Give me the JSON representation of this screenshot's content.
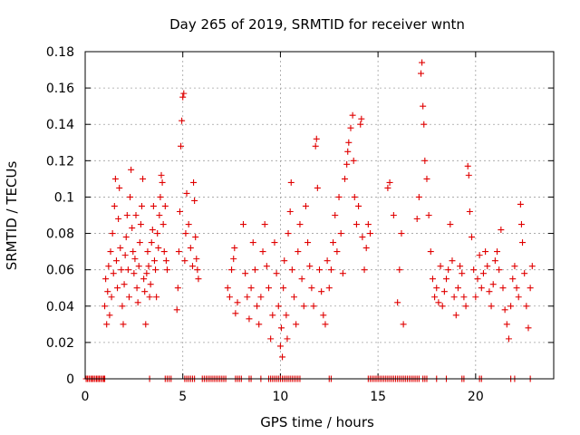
{
  "chart_data": {
    "type": "scatter",
    "title": "Day 265 of 2019, SRMTID for receiver wntn",
    "xlabel": "GPS time / hours",
    "ylabel": "SRMTID / TECUs",
    "xlim": [
      0,
      24
    ],
    "ylim": [
      0,
      0.18
    ],
    "xticks": [
      "0",
      "5",
      "10",
      "15",
      "20"
    ],
    "xtick_values": [
      0,
      5,
      10,
      15,
      20
    ],
    "yticks": [
      "0",
      "0.02",
      "0.04",
      "0.06",
      "0.08",
      "0.1",
      "0.12",
      "0.14",
      "0.16",
      "0.18"
    ],
    "ytick_values": [
      0,
      0.02,
      0.04,
      0.06,
      0.08,
      0.1,
      0.12,
      0.14,
      0.16,
      0.18
    ],
    "grid": true,
    "marker": "+",
    "series": [
      {
        "name": "SRMTID",
        "color": "#e00000",
        "points": [
          [
            1.0,
            0.04
          ],
          [
            1.05,
            0.055
          ],
          [
            1.1,
            0.03
          ],
          [
            1.15,
            0.048
          ],
          [
            1.2,
            0.062
          ],
          [
            1.25,
            0.035
          ],
          [
            1.3,
            0.07
          ],
          [
            1.35,
            0.045
          ],
          [
            1.4,
            0.08
          ],
          [
            1.45,
            0.058
          ],
          [
            1.5,
            0.095
          ],
          [
            1.55,
            0.11
          ],
          [
            1.6,
            0.065
          ],
          [
            1.65,
            0.05
          ],
          [
            1.7,
            0.088
          ],
          [
            1.75,
            0.105
          ],
          [
            1.8,
            0.072
          ],
          [
            1.85,
            0.06
          ],
          [
            1.9,
            0.04
          ],
          [
            1.95,
            0.03
          ],
          [
            2.0,
            0.052
          ],
          [
            2.05,
            0.068
          ],
          [
            2.1,
            0.078
          ],
          [
            2.15,
            0.09
          ],
          [
            2.2,
            0.06
          ],
          [
            2.25,
            0.045
          ],
          [
            2.3,
            0.1
          ],
          [
            2.35,
            0.115
          ],
          [
            2.4,
            0.083
          ],
          [
            2.45,
            0.07
          ],
          [
            2.5,
            0.058
          ],
          [
            2.55,
            0.066
          ],
          [
            2.6,
            0.09
          ],
          [
            2.65,
            0.05
          ],
          [
            2.7,
            0.042
          ],
          [
            2.75,
            0.062
          ],
          [
            2.8,
            0.075
          ],
          [
            2.85,
            0.085
          ],
          [
            2.9,
            0.095
          ],
          [
            2.95,
            0.11
          ],
          [
            3.0,
            0.055
          ],
          [
            3.05,
            0.048
          ],
          [
            3.1,
            0.03
          ],
          [
            3.15,
            0.058
          ],
          [
            3.2,
            0.07
          ],
          [
            3.25,
            0.062
          ],
          [
            3.3,
            0.045
          ],
          [
            3.35,
            0.052
          ],
          [
            3.4,
            0.075
          ],
          [
            3.45,
            0.082
          ],
          [
            3.5,
            0.095
          ],
          [
            3.55,
            0.065
          ],
          [
            3.6,
            0.06
          ],
          [
            3.65,
            0.045
          ],
          [
            3.7,
            0.08
          ],
          [
            3.75,
            0.072
          ],
          [
            3.8,
            0.09
          ],
          [
            3.85,
            0.1
          ],
          [
            3.9,
            0.112
          ],
          [
            3.95,
            0.108
          ],
          [
            4.0,
            0.085
          ],
          [
            4.05,
            0.07
          ],
          [
            4.1,
            0.095
          ],
          [
            4.15,
            0.065
          ],
          [
            4.2,
            0.06
          ],
          [
            4.7,
            0.038
          ],
          [
            4.75,
            0.05
          ],
          [
            4.8,
            0.07
          ],
          [
            4.85,
            0.092
          ],
          [
            4.9,
            0.128
          ],
          [
            4.95,
            0.142
          ],
          [
            5.0,
            0.155
          ],
          [
            5.05,
            0.157
          ],
          [
            5.1,
            0.065
          ],
          [
            5.15,
            0.08
          ],
          [
            5.2,
            0.102
          ],
          [
            5.3,
            0.085
          ],
          [
            5.4,
            0.072
          ],
          [
            5.5,
            0.062
          ],
          [
            5.55,
            0.108
          ],
          [
            5.6,
            0.098
          ],
          [
            5.65,
            0.078
          ],
          [
            5.7,
            0.066
          ],
          [
            5.75,
            0.06
          ],
          [
            5.8,
            0.055
          ],
          [
            7.3,
            0.05
          ],
          [
            7.4,
            0.045
          ],
          [
            7.5,
            0.06
          ],
          [
            7.6,
            0.066
          ],
          [
            7.65,
            0.072
          ],
          [
            7.7,
            0.036
          ],
          [
            7.8,
            0.042
          ],
          [
            8.1,
            0.085
          ],
          [
            8.2,
            0.058
          ],
          [
            8.3,
            0.045
          ],
          [
            8.4,
            0.033
          ],
          [
            8.5,
            0.05
          ],
          [
            8.6,
            0.075
          ],
          [
            8.7,
            0.06
          ],
          [
            8.8,
            0.04
          ],
          [
            8.9,
            0.03
          ],
          [
            9.0,
            0.045
          ],
          [
            9.1,
            0.07
          ],
          [
            9.2,
            0.085
          ],
          [
            9.3,
            0.062
          ],
          [
            9.4,
            0.05
          ],
          [
            9.5,
            0.022
          ],
          [
            9.6,
            0.035
          ],
          [
            9.7,
            0.075
          ],
          [
            9.8,
            0.058
          ],
          [
            9.9,
            0.04
          ],
          [
            10.0,
            0.018
          ],
          [
            10.05,
            0.028
          ],
          [
            10.1,
            0.012
          ],
          [
            10.15,
            0.05
          ],
          [
            10.2,
            0.065
          ],
          [
            10.3,
            0.035
          ],
          [
            10.35,
            0.022
          ],
          [
            10.4,
            0.08
          ],
          [
            10.5,
            0.092
          ],
          [
            10.55,
            0.108
          ],
          [
            10.6,
            0.06
          ],
          [
            10.7,
            0.045
          ],
          [
            10.8,
            0.03
          ],
          [
            10.9,
            0.07
          ],
          [
            11.0,
            0.085
          ],
          [
            11.1,
            0.055
          ],
          [
            11.2,
            0.04
          ],
          [
            11.3,
            0.095
          ],
          [
            11.4,
            0.075
          ],
          [
            11.5,
            0.062
          ],
          [
            11.6,
            0.05
          ],
          [
            11.7,
            0.04
          ],
          [
            11.8,
            0.128
          ],
          [
            11.85,
            0.132
          ],
          [
            11.9,
            0.105
          ],
          [
            12.0,
            0.06
          ],
          [
            12.1,
            0.048
          ],
          [
            12.2,
            0.035
          ],
          [
            12.3,
            0.03
          ],
          [
            12.4,
            0.065
          ],
          [
            12.5,
            0.05
          ],
          [
            12.6,
            0.06
          ],
          [
            12.7,
            0.075
          ],
          [
            12.8,
            0.09
          ],
          [
            12.9,
            0.07
          ],
          [
            13.0,
            0.1
          ],
          [
            13.1,
            0.08
          ],
          [
            13.2,
            0.058
          ],
          [
            13.3,
            0.11
          ],
          [
            13.4,
            0.118
          ],
          [
            13.45,
            0.125
          ],
          [
            13.5,
            0.13
          ],
          [
            13.6,
            0.138
          ],
          [
            13.7,
            0.145
          ],
          [
            13.75,
            0.12
          ],
          [
            13.8,
            0.1
          ],
          [
            13.9,
            0.085
          ],
          [
            14.0,
            0.095
          ],
          [
            14.1,
            0.14
          ],
          [
            14.15,
            0.143
          ],
          [
            14.2,
            0.078
          ],
          [
            14.3,
            0.06
          ],
          [
            14.4,
            0.072
          ],
          [
            14.5,
            0.085
          ],
          [
            14.6,
            0.08
          ],
          [
            15.5,
            0.105
          ],
          [
            15.6,
            0.108
          ],
          [
            15.8,
            0.09
          ],
          [
            16.0,
            0.042
          ],
          [
            16.1,
            0.06
          ],
          [
            16.2,
            0.08
          ],
          [
            16.3,
            0.03
          ],
          [
            17.0,
            0.088
          ],
          [
            17.1,
            0.1
          ],
          [
            17.2,
            0.168
          ],
          [
            17.25,
            0.174
          ],
          [
            17.3,
            0.15
          ],
          [
            17.35,
            0.14
          ],
          [
            17.4,
            0.12
          ],
          [
            17.5,
            0.11
          ],
          [
            17.6,
            0.09
          ],
          [
            17.7,
            0.07
          ],
          [
            17.8,
            0.055
          ],
          [
            17.9,
            0.045
          ],
          [
            18.0,
            0.05
          ],
          [
            18.1,
            0.042
          ],
          [
            18.2,
            0.062
          ],
          [
            18.3,
            0.04
          ],
          [
            18.4,
            0.048
          ],
          [
            18.5,
            0.055
          ],
          [
            18.6,
            0.06
          ],
          [
            18.7,
            0.085
          ],
          [
            18.8,
            0.065
          ],
          [
            18.9,
            0.045
          ],
          [
            19.0,
            0.035
          ],
          [
            19.1,
            0.05
          ],
          [
            19.2,
            0.062
          ],
          [
            19.3,
            0.058
          ],
          [
            19.4,
            0.045
          ],
          [
            19.5,
            0.04
          ],
          [
            19.6,
            0.117
          ],
          [
            19.65,
            0.112
          ],
          [
            19.7,
            0.092
          ],
          [
            19.8,
            0.078
          ],
          [
            19.9,
            0.06
          ],
          [
            20.0,
            0.045
          ],
          [
            20.1,
            0.055
          ],
          [
            20.2,
            0.068
          ],
          [
            20.3,
            0.05
          ],
          [
            20.4,
            0.058
          ],
          [
            20.5,
            0.07
          ],
          [
            20.6,
            0.062
          ],
          [
            20.7,
            0.048
          ],
          [
            20.8,
            0.04
          ],
          [
            20.9,
            0.052
          ],
          [
            21.0,
            0.065
          ],
          [
            21.1,
            0.07
          ],
          [
            21.2,
            0.06
          ],
          [
            21.3,
            0.082
          ],
          [
            21.4,
            0.05
          ],
          [
            21.5,
            0.038
          ],
          [
            21.6,
            0.03
          ],
          [
            21.7,
            0.022
          ],
          [
            21.8,
            0.04
          ],
          [
            21.9,
            0.055
          ],
          [
            22.0,
            0.062
          ],
          [
            22.1,
            0.05
          ],
          [
            22.2,
            0.045
          ],
          [
            22.3,
            0.096
          ],
          [
            22.35,
            0.085
          ],
          [
            22.4,
            0.075
          ],
          [
            22.5,
            0.058
          ],
          [
            22.6,
            0.04
          ],
          [
            22.7,
            0.028
          ],
          [
            22.8,
            0.05
          ],
          [
            22.9,
            0.062
          ]
        ],
        "zero_points": [
          0.05,
          0.12,
          0.2,
          0.28,
          0.35,
          0.42,
          0.5,
          0.58,
          0.65,
          0.72,
          0.8,
          0.88,
          0.95,
          1.0,
          3.3,
          4.1,
          4.2,
          4.3,
          4.4,
          5.1,
          5.2,
          5.3,
          5.4,
          5.5,
          5.6,
          6.0,
          6.1,
          6.2,
          6.3,
          6.4,
          6.5,
          6.6,
          6.7,
          6.8,
          6.9,
          7.0,
          7.1,
          7.2,
          7.7,
          7.8,
          7.9,
          8.0,
          8.4,
          8.5,
          9.0,
          9.4,
          9.5,
          9.6,
          9.7,
          9.8,
          9.9,
          10.0,
          10.1,
          10.2,
          10.3,
          10.4,
          10.5,
          10.6,
          10.7,
          10.8,
          10.9,
          11.0,
          12.5,
          12.6,
          14.5,
          14.6,
          14.7,
          14.8,
          14.9,
          15.0,
          15.1,
          15.2,
          15.3,
          15.4,
          15.5,
          15.6,
          15.7,
          15.8,
          15.9,
          16.0,
          16.1,
          16.2,
          16.3,
          16.4,
          16.5,
          16.6,
          16.7,
          16.8,
          16.9,
          17.0,
          17.1,
          17.3,
          17.4,
          17.5,
          18.0,
          18.5,
          19.3,
          19.4,
          20.2,
          20.3,
          21.8,
          22.0,
          22.8
        ]
      }
    ]
  }
}
